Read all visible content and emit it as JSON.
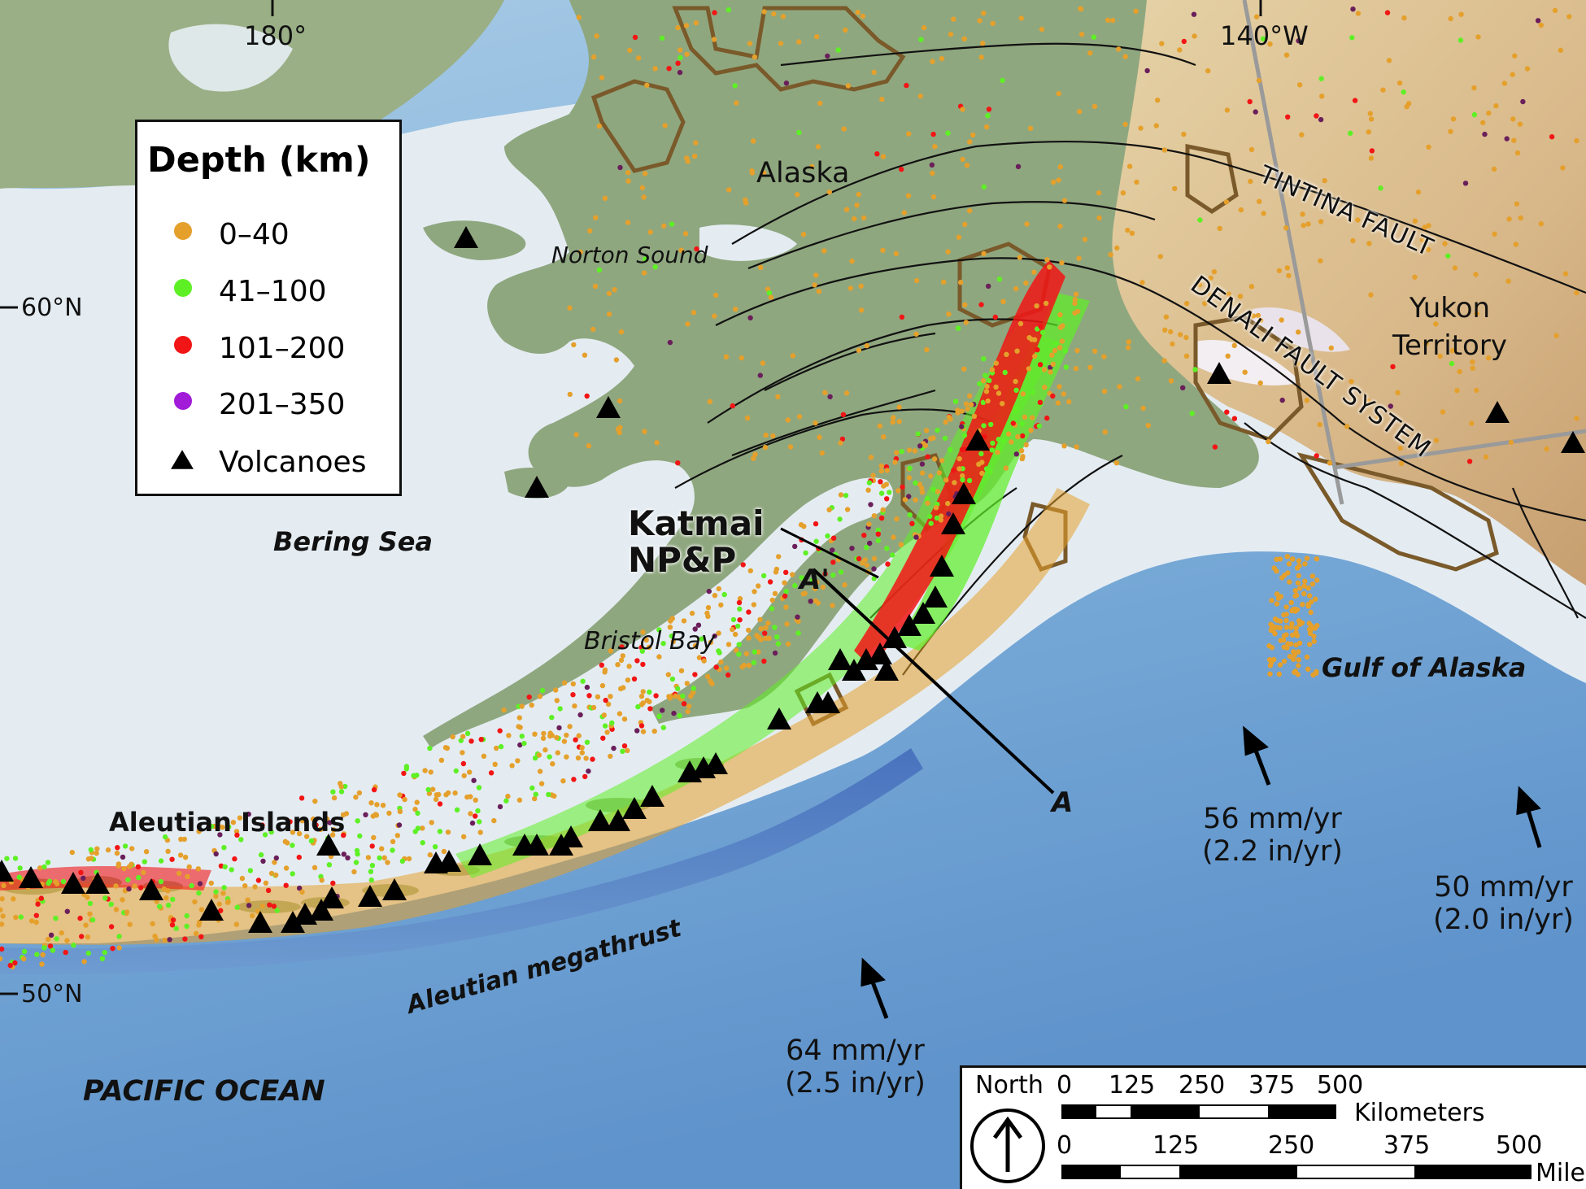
{
  "graticule": {
    "lon_180": "180°",
    "lon_140w": "140°W",
    "lat_60n": "60°N",
    "lat_50n": "50°N"
  },
  "legend": {
    "title": "Depth (km)",
    "items": [
      {
        "label": "0–40",
        "color": "#e5a02c",
        "shape": "dot"
      },
      {
        "label": "41–100",
        "color": "#5ef025",
        "shape": "dot"
      },
      {
        "label": "101–200",
        "color": "#f21515",
        "shape": "dot"
      },
      {
        "label": "201–350",
        "color": "#a21bd8",
        "shape": "dot"
      },
      {
        "label": "Volcanoes",
        "color": "#000000",
        "shape": "triangle"
      }
    ]
  },
  "places": {
    "alaska": "Alaska",
    "norton_sound": "Norton Sound",
    "bering_sea": "Bering Sea",
    "bristol_bay": "Bristol Bay",
    "aleutian_islands": "Aleutian Islands",
    "gulf_of_alaska": "Gulf of Alaska",
    "yukon": "Yukon\nTerritory",
    "pacific_ocean": "PACIFIC OCEAN",
    "aleutian_megathrust": "Aleutian megathrust",
    "tintina": "TINTINA FAULT",
    "denali": "DENALI FAULT SYSTEM",
    "katmai": "Katmai\nNP&P",
    "a_prime": "A'",
    "a": "A"
  },
  "plate_motion": [
    {
      "rate_mm": "56 mm/yr",
      "rate_in": "(2.2 in/yr)"
    },
    {
      "rate_mm": "50 mm/yr",
      "rate_in": "(2.0 in/yr)"
    },
    {
      "rate_mm": "64 mm/yr",
      "rate_in": "(2.5 in/yr)"
    }
  ],
  "scale": {
    "north": "North",
    "km_ticks": [
      "0",
      "125",
      "250",
      "375",
      "500"
    ],
    "km_unit": "Kilometers",
    "mi_ticks": [
      "0",
      "125",
      "250",
      "375",
      "500"
    ],
    "mi_unit": "Miles"
  },
  "colors": {
    "ocean_deep": "#5c8fc9",
    "ocean_mid": "#8db8de",
    "shelf": "#e6eef3",
    "land_alaska": "#8fa77f",
    "land_yukon": "#d8c08f",
    "park_boundary": "#7a5a2a"
  }
}
